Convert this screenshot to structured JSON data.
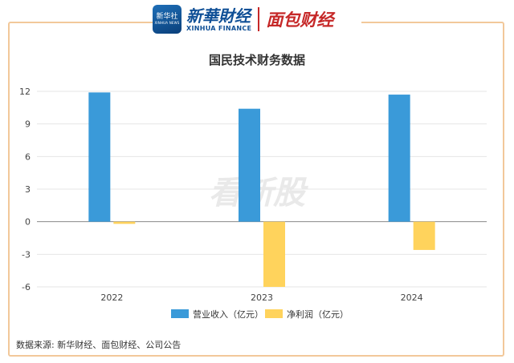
{
  "header": {
    "logo_text": "新华社",
    "logo_sub": "XINHUA NEWS",
    "brand_cn": "新華財经",
    "brand_en": "XINHUA FINANCE",
    "partner": "面包财经"
  },
  "watermark": "看新股",
  "source_note": "数据来源: 新华财经、面包财经、公司公告",
  "colors": {
    "revenue": "#3a9ad9",
    "profit": "#ffd35c",
    "frame": "#f2c89a"
  },
  "chart_data": {
    "type": "bar",
    "title": "国民技术财务数据",
    "categories": [
      "2022",
      "2023",
      "2024"
    ],
    "series": [
      {
        "name": "营业收入（亿元）",
        "values": [
          11.9,
          10.4,
          11.7
        ]
      },
      {
        "name": "净利润（亿元）",
        "values": [
          -0.2,
          -6.0,
          -2.6
        ]
      }
    ],
    "yticks": [
      12,
      9,
      6,
      3,
      0,
      -3,
      -6
    ],
    "ylim": [
      -6,
      12
    ],
    "grid": true,
    "legend_position": "bottom"
  }
}
